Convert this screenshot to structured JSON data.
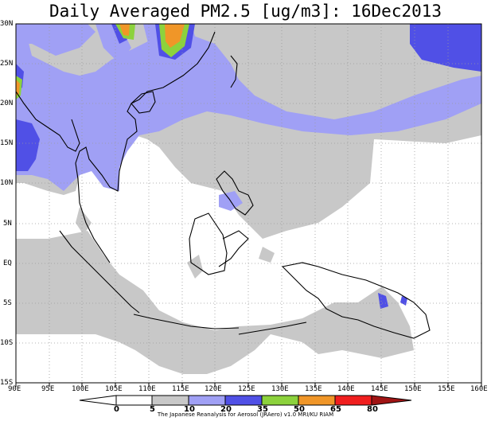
{
  "title": "Daily Averaged PM2.5 [ug/m3]: 16Dec2013",
  "lat_labels": [
    "30N",
    "25N",
    "20N",
    "15N",
    "10N",
    "5N",
    "EQ",
    "5S",
    "10S",
    "15S"
  ],
  "lon_labels": [
    "90E",
    "95E",
    "100E",
    "105E",
    "110E",
    "115E",
    "120E",
    "125E",
    "130E",
    "135E",
    "140E",
    "145E",
    "150E",
    "155E",
    "160E"
  ],
  "colorbar": {
    "levels": [
      "0",
      "5",
      "10",
      "20",
      "35",
      "50",
      "65",
      "80"
    ],
    "colors": [
      "#ffffff",
      "#ffffff",
      "#c8c8c8",
      "#a0a0f5",
      "#5050e6",
      "#8cd23c",
      "#f09628",
      "#f01e1e",
      "#a01414"
    ]
  },
  "credit": "The Japanese Reanalysis for Aerosol (JRAero) v1.0 MRI/KU RIAM",
  "chart_data": {
    "type": "heatmap",
    "title": "Daily Averaged PM2.5 [ug/m3]: 16Dec2013",
    "variable": "PM2.5",
    "units": "ug/m3",
    "date": "16Dec2013",
    "lon_range": [
      90,
      160
    ],
    "lat_range": [
      -15,
      30
    ],
    "contour_levels": [
      0,
      5,
      10,
      20,
      35,
      50,
      65,
      80
    ]
  }
}
